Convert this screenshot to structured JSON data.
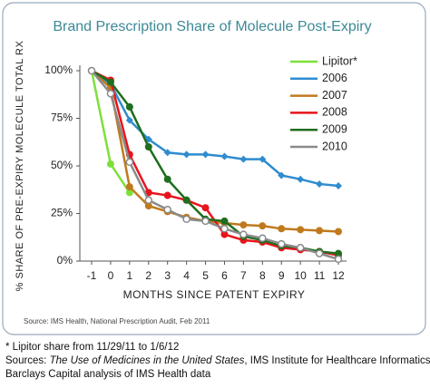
{
  "chart_data": {
    "type": "line",
    "title": "Brand Prescription Share of Molecule Post-Expiry",
    "ylabel": "% SHARE OF PRE-EXPIRY MOLECULE TOTAL RX",
    "xlabel": "MONTHS SINCE PATENT EXPIRY",
    "source": "Source: IMS Health, National Prescription Audit, Feb 2011",
    "x": [
      -1,
      0,
      1,
      2,
      3,
      4,
      5,
      6,
      7,
      8,
      9,
      10,
      11,
      12
    ],
    "xlim": [
      -1,
      12
    ],
    "xticks": [
      -1,
      0,
      1,
      2,
      3,
      4,
      5,
      6,
      7,
      8,
      9,
      10,
      11,
      12
    ],
    "ylim": [
      0,
      100
    ],
    "yticks": [
      {
        "value": 0,
        "label": "0%"
      },
      {
        "value": 25,
        "label": "25%"
      },
      {
        "value": 50,
        "label": "50%"
      },
      {
        "value": 75,
        "label": "75%"
      },
      {
        "value": 100,
        "label": "100%"
      }
    ],
    "legend": "upper right",
    "series": [
      {
        "name": "Lipitor*",
        "color": "#7de03a",
        "marker": "circle",
        "values": [
          100,
          51,
          36,
          null,
          null,
          null,
          null,
          null,
          null,
          null,
          null,
          null,
          null,
          null
        ]
      },
      {
        "name": "2006",
        "color": "#2f8ccf",
        "marker": "diamond",
        "values": [
          100,
          93,
          74,
          64,
          57,
          56,
          56,
          55,
          53.5,
          53.5,
          45,
          43,
          40.5,
          39.5
        ]
      },
      {
        "name": "2007",
        "color": "#c07a1e",
        "marker": "circle",
        "values": [
          100,
          91,
          39,
          29,
          26,
          23,
          21,
          20,
          19,
          18.5,
          17,
          16.5,
          16,
          15.5
        ]
      },
      {
        "name": "2008",
        "color": "#e8141c",
        "marker": "circle",
        "values": [
          100,
          95,
          56,
          36,
          34.5,
          32,
          28,
          14,
          11,
          10,
          7,
          6,
          5,
          3
        ]
      },
      {
        "name": "2009",
        "color": "#1e6e1e",
        "marker": "circle",
        "values": [
          100,
          94,
          81,
          60,
          43,
          32,
          22,
          21,
          13,
          11,
          8,
          7,
          5,
          4
        ]
      },
      {
        "name": "2010",
        "color": "#8a8a8a",
        "marker": "open-circle",
        "values": [
          100,
          88,
          52,
          32,
          27,
          22,
          21,
          17,
          14,
          12,
          9,
          7,
          4,
          1
        ]
      }
    ]
  },
  "footnotes": {
    "line1": "* Lipitor share from 11/29/11 to 1/6/12",
    "line2_start": "Sources: ",
    "line2_italic": "The Use of Medicines in the United States",
    "line2_end": ", IMS Institute for Healthcare Informatics;",
    "line3": "Barclays Capital analysis of IMS Health data"
  }
}
